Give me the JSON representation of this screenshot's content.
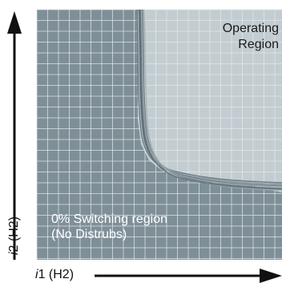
{
  "regions": {
    "operating": {
      "line1": "Operating",
      "line2": "Region"
    },
    "switching": {
      "line1": "0% Switching region",
      "line2": "(No Distrubs)"
    }
  },
  "axes": {
    "x": {
      "variable": "i",
      "rest": "1 (H2)"
    },
    "y": {
      "variable": "i",
      "rest": "2 (H2)"
    }
  },
  "colors": {
    "dark_grid_bg": "#7e8f97",
    "light_region_bg": "#c3cdd1",
    "grid_line": "#e4e9eb",
    "curve": "#5d6d75",
    "axis": "#111111"
  }
}
